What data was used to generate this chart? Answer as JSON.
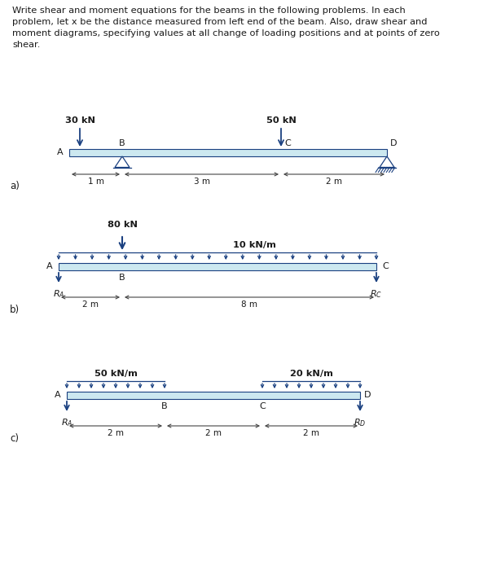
{
  "bg_color": "#ffffff",
  "text_color": "#1a1a1a",
  "blue": "#1a4080",
  "beam_fill": "#cce8f0",
  "beam_edge": "#1a4080",
  "intro_line1": "Write shear and moment equations for the beams in the following problems. In each",
  "intro_line2": "problem, let x be the distance measured from left end of the beam. Also, draw shear and",
  "intro_line3": "moment diagrams, specifying values at all change of loading positions and at points of zero",
  "intro_line4": "shear.",
  "font_size_text": 8.2,
  "font_size_label": 8.0,
  "font_size_bold": 8.2,
  "font_size_abc": 8.5
}
